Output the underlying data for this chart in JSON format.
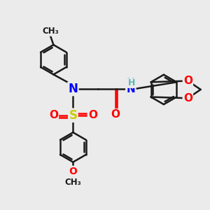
{
  "background_color": "#ebebeb",
  "bond_color": "#1a1a1a",
  "bond_width": 1.8,
  "atom_colors": {
    "N": "#0000ff",
    "S": "#cccc00",
    "O": "#ff0000",
    "H": "#5ab8b8",
    "C": "#1a1a1a"
  },
  "font_size_atom": 11,
  "font_size_small": 8.5
}
